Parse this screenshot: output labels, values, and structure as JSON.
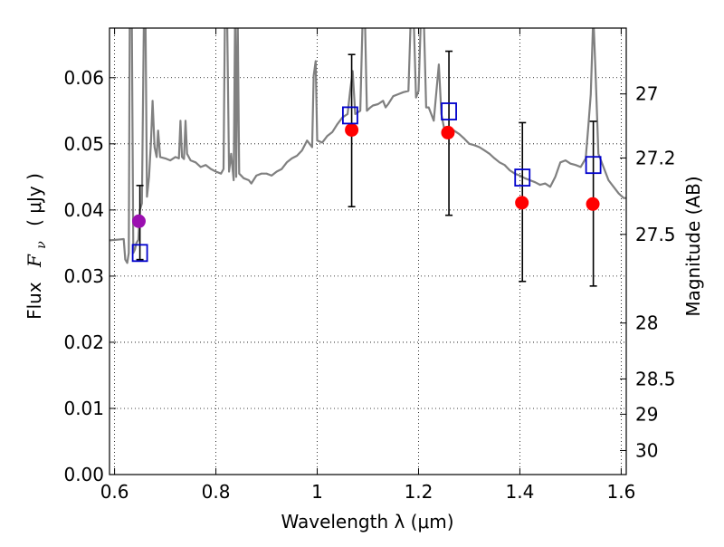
{
  "chart_data": {
    "type": "scatter",
    "xlabel": "Wavelength  λ (μm)",
    "ylabel_text": "Flux",
    "ylabel_symbol": "F",
    "ylabel_sub": "ν",
    "ylabel_unit": "( μJy )",
    "y2label": "Magnitude (AB)",
    "xlim": [
      0.59,
      1.61
    ],
    "ylim": [
      0.0,
      0.0675
    ],
    "grid": true,
    "x_ticks": [
      {
        "value": 0.6,
        "label": "0.6"
      },
      {
        "value": 0.8,
        "label": "0.8"
      },
      {
        "value": 1.0,
        "label": "1"
      },
      {
        "value": 1.2,
        "label": "1.2"
      },
      {
        "value": 1.4,
        "label": "1.4"
      },
      {
        "value": 1.6,
        "label": "1.6"
      }
    ],
    "y_ticks": [
      {
        "value": 0.0,
        "label": "0.00"
      },
      {
        "value": 0.01,
        "label": "0.01"
      },
      {
        "value": 0.02,
        "label": "0.02"
      },
      {
        "value": 0.03,
        "label": "0.03"
      },
      {
        "value": 0.04,
        "label": "0.04"
      },
      {
        "value": 0.05,
        "label": "0.05"
      },
      {
        "value": 0.06,
        "label": "0.06"
      }
    ],
    "y2_ticks": [
      {
        "mag": 27,
        "label": "27"
      },
      {
        "mag": 27.2,
        "label": "27.2"
      },
      {
        "mag": 27.5,
        "label": "27.5"
      },
      {
        "mag": 28,
        "label": "28"
      },
      {
        "mag": 28.5,
        "label": "28.5"
      },
      {
        "mag": 29,
        "label": "29"
      },
      {
        "mag": 30,
        "label": "30"
      }
    ],
    "model_spectrum": {
      "color": "#808080",
      "points": [
        [
          0.59,
          0.0354
        ],
        [
          0.605,
          0.0355
        ],
        [
          0.618,
          0.0356
        ],
        [
          0.621,
          0.0325
        ],
        [
          0.625,
          0.032
        ],
        [
          0.628,
          0.0335
        ],
        [
          0.63,
          0.07
        ],
        [
          0.634,
          0.07
        ],
        [
          0.637,
          0.0335
        ],
        [
          0.64,
          0.034
        ],
        [
          0.643,
          0.035
        ],
        [
          0.647,
          0.0355
        ],
        [
          0.65,
          0.04
        ],
        [
          0.654,
          0.041
        ],
        [
          0.658,
          0.07
        ],
        [
          0.661,
          0.07
        ],
        [
          0.664,
          0.042
        ],
        [
          0.668,
          0.045
        ],
        [
          0.672,
          0.0505
        ],
        [
          0.675,
          0.0565
        ],
        [
          0.679,
          0.0495
        ],
        [
          0.683,
          0.048
        ],
        [
          0.686,
          0.052
        ],
        [
          0.69,
          0.048
        ],
        [
          0.7,
          0.0478
        ],
        [
          0.71,
          0.0475
        ],
        [
          0.72,
          0.048
        ],
        [
          0.727,
          0.0478
        ],
        [
          0.73,
          0.0535
        ],
        [
          0.733,
          0.048
        ],
        [
          0.737,
          0.0477
        ],
        [
          0.74,
          0.0535
        ],
        [
          0.743,
          0.0485
        ],
        [
          0.75,
          0.0475
        ],
        [
          0.76,
          0.0472
        ],
        [
          0.77,
          0.0465
        ],
        [
          0.78,
          0.0468
        ],
        [
          0.79,
          0.0462
        ],
        [
          0.8,
          0.0458
        ],
        [
          0.81,
          0.0455
        ],
        [
          0.815,
          0.0462
        ],
        [
          0.818,
          0.07
        ],
        [
          0.822,
          0.07
        ],
        [
          0.826,
          0.0458
        ],
        [
          0.83,
          0.0485
        ],
        [
          0.835,
          0.0445
        ],
        [
          0.838,
          0.07
        ],
        [
          0.84,
          0.045
        ],
        [
          0.843,
          0.07
        ],
        [
          0.846,
          0.0455
        ],
        [
          0.855,
          0.0448
        ],
        [
          0.865,
          0.0445
        ],
        [
          0.87,
          0.044
        ],
        [
          0.88,
          0.0452
        ],
        [
          0.89,
          0.0455
        ],
        [
          0.9,
          0.0455
        ],
        [
          0.91,
          0.0452
        ],
        [
          0.92,
          0.0458
        ],
        [
          0.93,
          0.0462
        ],
        [
          0.94,
          0.0472
        ],
        [
          0.95,
          0.0478
        ],
        [
          0.96,
          0.0482
        ],
        [
          0.97,
          0.049
        ],
        [
          0.98,
          0.0505
        ],
        [
          0.99,
          0.0495
        ],
        [
          0.993,
          0.0603
        ],
        [
          0.997,
          0.0625
        ],
        [
          1.0,
          0.0505
        ],
        [
          1.01,
          0.0502
        ],
        [
          1.02,
          0.0512
        ],
        [
          1.03,
          0.0518
        ],
        [
          1.04,
          0.053
        ],
        [
          1.05,
          0.054
        ],
        [
          1.06,
          0.0545
        ],
        [
          1.065,
          0.058
        ],
        [
          1.07,
          0.061
        ],
        [
          1.075,
          0.0545
        ],
        [
          1.085,
          0.055
        ],
        [
          1.09,
          0.07
        ],
        [
          1.094,
          0.07
        ],
        [
          1.098,
          0.055
        ],
        [
          1.105,
          0.0555
        ],
        [
          1.11,
          0.0558
        ],
        [
          1.12,
          0.056
        ],
        [
          1.13,
          0.0565
        ],
        [
          1.135,
          0.0555
        ],
        [
          1.14,
          0.056
        ],
        [
          1.15,
          0.0572
        ],
        [
          1.16,
          0.0575
        ],
        [
          1.17,
          0.0578
        ],
        [
          1.18,
          0.058
        ],
        [
          1.185,
          0.07
        ],
        [
          1.19,
          0.07
        ],
        [
          1.195,
          0.057
        ],
        [
          1.2,
          0.058
        ],
        [
          1.205,
          0.07
        ],
        [
          1.21,
          0.07
        ],
        [
          1.215,
          0.0555
        ],
        [
          1.22,
          0.0555
        ],
        [
          1.23,
          0.0535
        ],
        [
          1.24,
          0.062
        ],
        [
          1.245,
          0.0545
        ],
        [
          1.25,
          0.0525
        ],
        [
          1.26,
          0.0525
        ],
        [
          1.27,
          0.052
        ],
        [
          1.28,
          0.0515
        ],
        [
          1.29,
          0.0508
        ],
        [
          1.3,
          0.05
        ],
        [
          1.31,
          0.0498
        ],
        [
          1.32,
          0.0495
        ],
        [
          1.33,
          0.049
        ],
        [
          1.34,
          0.0485
        ],
        [
          1.35,
          0.0478
        ],
        [
          1.36,
          0.0472
        ],
        [
          1.37,
          0.0468
        ],
        [
          1.38,
          0.046
        ],
        [
          1.39,
          0.0455
        ],
        [
          1.4,
          0.0452
        ],
        [
          1.41,
          0.0448
        ],
        [
          1.42,
          0.0445
        ],
        [
          1.43,
          0.0442
        ],
        [
          1.44,
          0.0438
        ],
        [
          1.45,
          0.044
        ],
        [
          1.46,
          0.0435
        ],
        [
          1.47,
          0.045
        ],
        [
          1.48,
          0.0472
        ],
        [
          1.49,
          0.0475
        ],
        [
          1.5,
          0.047
        ],
        [
          1.51,
          0.0468
        ],
        [
          1.52,
          0.0465
        ],
        [
          1.53,
          0.0478
        ],
        [
          1.535,
          0.0525
        ],
        [
          1.54,
          0.0575
        ],
        [
          1.545,
          0.0695
        ],
        [
          1.55,
          0.0595
        ],
        [
          1.555,
          0.0485
        ],
        [
          1.565,
          0.0465
        ],
        [
          1.575,
          0.0445
        ],
        [
          1.585,
          0.0435
        ],
        [
          1.595,
          0.0425
        ],
        [
          1.605,
          0.0418
        ],
        [
          1.61,
          0.0418
        ]
      ]
    },
    "series": [
      {
        "marker": "circle",
        "color": "#9b0fb0",
        "points": [
          {
            "x": 0.648,
            "y": 0.0383
          }
        ]
      },
      {
        "marker": "circle",
        "color": "#ff0000",
        "points": [
          {
            "x": 1.068,
            "y": 0.0521
          },
          {
            "x": 1.258,
            "y": 0.0517
          },
          {
            "x": 1.404,
            "y": 0.0411
          },
          {
            "x": 1.544,
            "y": 0.0409
          }
        ]
      },
      {
        "marker": "square-open",
        "color": "#0000cc",
        "points": [
          {
            "x": 0.65,
            "y": 0.0335
          },
          {
            "x": 1.065,
            "y": 0.0543
          },
          {
            "x": 1.26,
            "y": 0.0549
          },
          {
            "x": 1.405,
            "y": 0.0449
          },
          {
            "x": 1.545,
            "y": 0.0468
          }
        ]
      }
    ],
    "error_bars": [
      {
        "x": 0.65,
        "lo": 0.0325,
        "hi": 0.0437
      },
      {
        "x": 1.068,
        "lo": 0.0405,
        "hi": 0.0635
      },
      {
        "x": 1.26,
        "lo": 0.0392,
        "hi": 0.064
      },
      {
        "x": 1.405,
        "lo": 0.0292,
        "hi": 0.0532
      },
      {
        "x": 1.545,
        "lo": 0.0285,
        "hi": 0.0534
      }
    ]
  }
}
